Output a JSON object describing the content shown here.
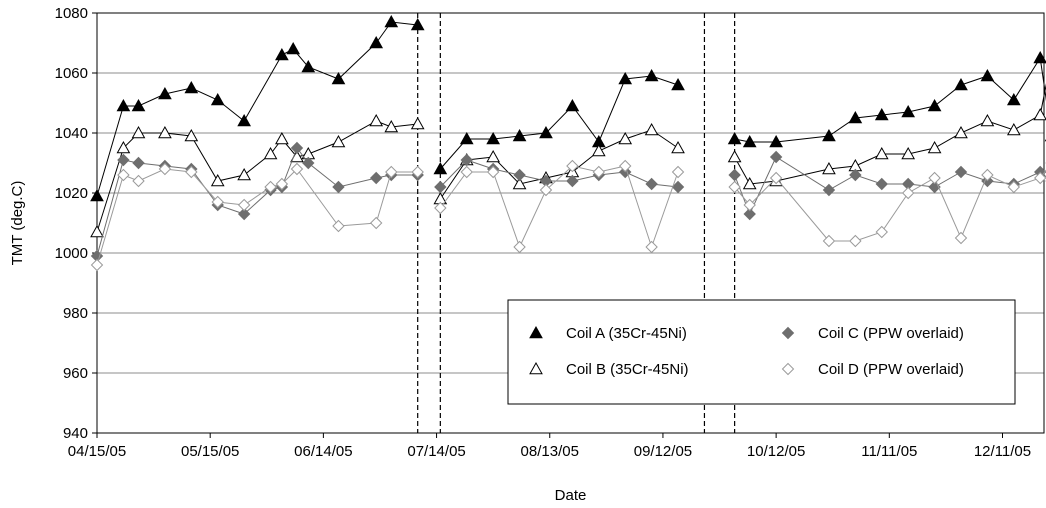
{
  "chart_data": {
    "type": "line",
    "xlabel": "Date",
    "ylabel": "TMT (deg.C)",
    "ylim": [
      940,
      1080
    ],
    "yticks": [
      940,
      960,
      980,
      1000,
      1020,
      1040,
      1060,
      1080
    ],
    "xlim": [
      "2005-04-15",
      "2005-12-22"
    ],
    "xticks": [
      {
        "date": "2005-04-15",
        "label": "04/15/05"
      },
      {
        "date": "2005-05-15",
        "label": "05/15/05"
      },
      {
        "date": "2005-06-14",
        "label": "06/14/05"
      },
      {
        "date": "2005-07-14",
        "label": "07/14/05"
      },
      {
        "date": "2005-08-13",
        "label": "08/13/05"
      },
      {
        "date": "2005-09-12",
        "label": "09/12/05"
      },
      {
        "date": "2005-10-12",
        "label": "10/12/05"
      },
      {
        "date": "2005-11-11",
        "label": "11/11/05"
      },
      {
        "date": "2005-12-11",
        "label": "12/11/05"
      }
    ],
    "grid": "horizontal",
    "legend_position": "bottom-right",
    "vertical_markers": [
      "2005-07-09",
      "2005-07-15",
      "2005-09-23",
      "2005-10-01"
    ],
    "series": [
      {
        "name": "Coil A (35Cr-45Ni)",
        "color": "#000000",
        "marker": "triangle-filled",
        "segments": [
          [
            [
              "2005-04-15",
              1019
            ],
            [
              "2005-04-22",
              1049
            ],
            [
              "2005-04-26",
              1049
            ],
            [
              "2005-05-03",
              1053
            ],
            [
              "2005-05-10",
              1055
            ],
            [
              "2005-05-17",
              1051
            ],
            [
              "2005-05-24",
              1044
            ],
            [
              "2005-06-03",
              1066
            ],
            [
              "2005-06-06",
              1068
            ],
            [
              "2005-06-10",
              1062
            ],
            [
              "2005-06-18",
              1058
            ],
            [
              "2005-06-28",
              1070
            ],
            [
              "2005-07-02",
              1077
            ],
            [
              "2005-07-09",
              1076
            ]
          ],
          [
            [
              "2005-07-15",
              1028
            ],
            [
              "2005-07-22",
              1038
            ],
            [
              "2005-07-29",
              1038
            ],
            [
              "2005-08-05",
              1039
            ],
            [
              "2005-08-12",
              1040
            ],
            [
              "2005-08-19",
              1049
            ],
            [
              "2005-08-26",
              1037
            ],
            [
              "2005-09-02",
              1058
            ],
            [
              "2005-09-09",
              1059
            ],
            [
              "2005-09-16",
              1056
            ]
          ],
          [
            [
              "2005-10-01",
              1038
            ],
            [
              "2005-10-05",
              1037
            ],
            [
              "2005-10-12",
              1037
            ],
            [
              "2005-10-26",
              1039
            ],
            [
              "2005-11-02",
              1045
            ],
            [
              "2005-11-09",
              1046
            ],
            [
              "2005-11-16",
              1047
            ],
            [
              "2005-11-23",
              1049
            ],
            [
              "2005-11-30",
              1056
            ],
            [
              "2005-12-07",
              1059
            ],
            [
              "2005-12-14",
              1051
            ],
            [
              "2005-12-21",
              1065
            ],
            [
              "2005-12-24",
              1039
            ]
          ]
        ]
      },
      {
        "name": "Coil B (35Cr-45Ni)",
        "color": "#000000",
        "marker": "triangle-open",
        "segments": [
          [
            [
              "2005-04-15",
              1007
            ],
            [
              "2005-04-22",
              1035
            ],
            [
              "2005-04-26",
              1040
            ],
            [
              "2005-05-03",
              1040
            ],
            [
              "2005-05-10",
              1039
            ],
            [
              "2005-05-17",
              1024
            ],
            [
              "2005-05-24",
              1026
            ],
            [
              "2005-05-31",
              1033
            ],
            [
              "2005-06-03",
              1038
            ],
            [
              "2005-06-07",
              1032
            ],
            [
              "2005-06-10",
              1033
            ],
            [
              "2005-06-18",
              1037
            ],
            [
              "2005-06-28",
              1044
            ],
            [
              "2005-07-02",
              1042
            ],
            [
              "2005-07-09",
              1043
            ]
          ],
          [
            [
              "2005-07-15",
              1018
            ],
            [
              "2005-07-22",
              1031
            ],
            [
              "2005-07-29",
              1032
            ],
            [
              "2005-08-05",
              1023
            ],
            [
              "2005-08-12",
              1025
            ],
            [
              "2005-08-19",
              1027
            ],
            [
              "2005-08-26",
              1034
            ],
            [
              "2005-09-02",
              1038
            ],
            [
              "2005-09-09",
              1041
            ],
            [
              "2005-09-16",
              1035
            ]
          ],
          [
            [
              "2005-10-01",
              1032
            ],
            [
              "2005-10-05",
              1023
            ],
            [
              "2005-10-12",
              1024
            ],
            [
              "2005-10-26",
              1028
            ],
            [
              "2005-11-02",
              1029
            ],
            [
              "2005-11-09",
              1033
            ],
            [
              "2005-11-16",
              1033
            ],
            [
              "2005-11-23",
              1035
            ],
            [
              "2005-11-30",
              1040
            ],
            [
              "2005-12-07",
              1044
            ],
            [
              "2005-12-14",
              1041
            ],
            [
              "2005-12-21",
              1046
            ],
            [
              "2005-12-24",
              1065
            ]
          ]
        ]
      },
      {
        "name": "Coil C (PPW overlaid)",
        "color": "#6e6e6e",
        "marker": "diamond-filled",
        "segments": [
          [
            [
              "2005-04-15",
              999
            ],
            [
              "2005-04-22",
              1031
            ],
            [
              "2005-04-26",
              1030
            ],
            [
              "2005-05-03",
              1029
            ],
            [
              "2005-05-10",
              1028
            ],
            [
              "2005-05-17",
              1016
            ],
            [
              "2005-05-24",
              1013
            ],
            [
              "2005-05-31",
              1021
            ],
            [
              "2005-06-03",
              1022
            ],
            [
              "2005-06-07",
              1035
            ],
            [
              "2005-06-10",
              1030
            ],
            [
              "2005-06-18",
              1022
            ],
            [
              "2005-06-28",
              1025
            ],
            [
              "2005-07-02",
              1026
            ],
            [
              "2005-07-09",
              1026
            ]
          ],
          [
            [
              "2005-07-15",
              1022
            ],
            [
              "2005-07-22",
              1031
            ],
            [
              "2005-07-29",
              1028
            ],
            [
              "2005-08-05",
              1026
            ],
            [
              "2005-08-12",
              1024
            ],
            [
              "2005-08-19",
              1024
            ],
            [
              "2005-08-26",
              1026
            ],
            [
              "2005-09-02",
              1027
            ],
            [
              "2005-09-09",
              1023
            ],
            [
              "2005-09-16",
              1022
            ]
          ],
          [
            [
              "2005-10-01",
              1026
            ],
            [
              "2005-10-05",
              1013
            ],
            [
              "2005-10-12",
              1032
            ],
            [
              "2005-10-26",
              1021
            ],
            [
              "2005-11-02",
              1026
            ],
            [
              "2005-11-09",
              1023
            ],
            [
              "2005-11-16",
              1023
            ],
            [
              "2005-11-23",
              1022
            ],
            [
              "2005-11-30",
              1027
            ],
            [
              "2005-12-07",
              1024
            ],
            [
              "2005-12-14",
              1023
            ],
            [
              "2005-12-21",
              1027
            ],
            [
              "2005-12-24",
              1024
            ]
          ]
        ]
      },
      {
        "name": "Coil D (PPW overlaid)",
        "color": "#9a9a9a",
        "marker": "diamond-open",
        "segments": [
          [
            [
              "2005-04-15",
              996
            ],
            [
              "2005-04-22",
              1026
            ],
            [
              "2005-04-26",
              1024
            ],
            [
              "2005-05-03",
              1028
            ],
            [
              "2005-05-10",
              1027
            ],
            [
              "2005-05-17",
              1017
            ],
            [
              "2005-05-24",
              1016
            ],
            [
              "2005-05-31",
              1022
            ],
            [
              "2005-06-03",
              1023
            ],
            [
              "2005-06-07",
              1028
            ],
            [
              "2005-06-18",
              1009
            ],
            [
              "2005-06-28",
              1010
            ],
            [
              "2005-07-02",
              1027
            ],
            [
              "2005-07-09",
              1027
            ]
          ],
          [
            [
              "2005-07-15",
              1015
            ],
            [
              "2005-07-22",
              1027
            ],
            [
              "2005-07-29",
              1027
            ],
            [
              "2005-08-05",
              1002
            ],
            [
              "2005-08-12",
              1021
            ],
            [
              "2005-08-19",
              1029
            ],
            [
              "2005-08-26",
              1027
            ],
            [
              "2005-09-02",
              1029
            ],
            [
              "2005-09-09",
              1002
            ],
            [
              "2005-09-16",
              1027
            ]
          ],
          [
            [
              "2005-10-01",
              1022
            ],
            [
              "2005-10-05",
              1016
            ],
            [
              "2005-10-12",
              1025
            ],
            [
              "2005-10-26",
              1004
            ],
            [
              "2005-11-02",
              1004
            ],
            [
              "2005-11-09",
              1007
            ],
            [
              "2005-11-16",
              1020
            ],
            [
              "2005-11-23",
              1025
            ],
            [
              "2005-11-30",
              1005
            ],
            [
              "2005-12-07",
              1026
            ],
            [
              "2005-12-14",
              1022
            ],
            [
              "2005-12-21",
              1025
            ],
            [
              "2005-12-24",
              1030
            ]
          ]
        ]
      }
    ]
  }
}
